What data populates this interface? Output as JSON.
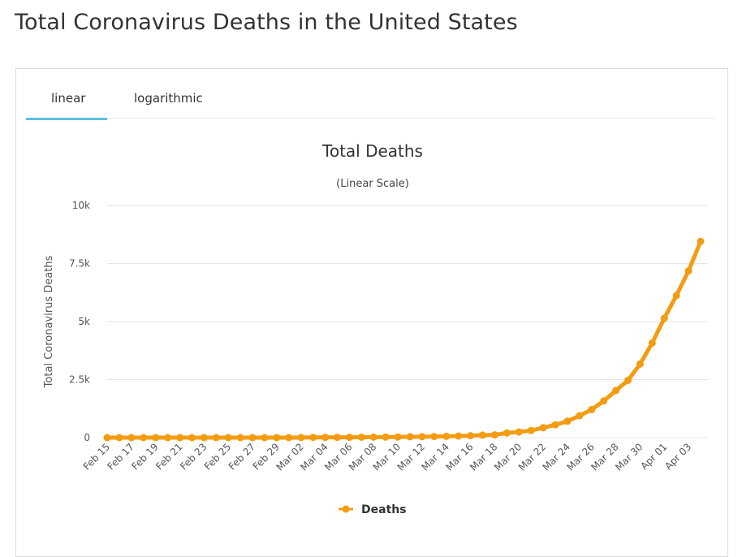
{
  "page": {
    "title": "Total Coronavirus Deaths in the United States"
  },
  "tabs": [
    {
      "label": "linear",
      "active": true
    },
    {
      "label": "logarithmic",
      "active": false
    }
  ],
  "colors": {
    "series": "#f39c12",
    "accent": "#5bc0de",
    "grid": "#e6e6e6"
  },
  "chart_data": {
    "type": "line",
    "title": "Total Deaths",
    "subtitle": "(Linear Scale)",
    "ylabel": "Total Coronavirus Deaths",
    "xlabel": "",
    "ylim": [
      0,
      10000
    ],
    "y_ticks": [
      0,
      2500,
      5000,
      7500,
      10000
    ],
    "y_tick_labels": [
      "0",
      "2.5k",
      "5k",
      "7.5k",
      "10k"
    ],
    "grid": true,
    "legend": "bottom-center",
    "x_tick_labels": [
      "Feb 15",
      "Feb 17",
      "Feb 19",
      "Feb 21",
      "Feb 23",
      "Feb 25",
      "Feb 27",
      "Feb 29",
      "Mar 02",
      "Mar 04",
      "Mar 06",
      "Mar 08",
      "Mar 10",
      "Mar 12",
      "Mar 14",
      "Mar 16",
      "Mar 18",
      "Mar 20",
      "Mar 22",
      "Mar 24",
      "Mar 26",
      "Mar 28",
      "Mar 30",
      "Apr 01",
      "Apr 03"
    ],
    "x": [
      "Feb 15",
      "Feb 16",
      "Feb 17",
      "Feb 18",
      "Feb 19",
      "Feb 20",
      "Feb 21",
      "Feb 22",
      "Feb 23",
      "Feb 24",
      "Feb 25",
      "Feb 26",
      "Feb 27",
      "Feb 28",
      "Feb 29",
      "Mar 01",
      "Mar 02",
      "Mar 03",
      "Mar 04",
      "Mar 05",
      "Mar 06",
      "Mar 07",
      "Mar 08",
      "Mar 09",
      "Mar 10",
      "Mar 11",
      "Mar 12",
      "Mar 13",
      "Mar 14",
      "Mar 15",
      "Mar 16",
      "Mar 17",
      "Mar 18",
      "Mar 19",
      "Mar 20",
      "Mar 21",
      "Mar 22",
      "Mar 23",
      "Mar 24",
      "Mar 25",
      "Mar 26",
      "Mar 27",
      "Mar 28",
      "Mar 29",
      "Mar 30",
      "Mar 31",
      "Apr 01",
      "Apr 02",
      "Apr 03",
      "Apr 04"
    ],
    "series": [
      {
        "name": "Deaths",
        "color": "#f39c12",
        "values": [
          0,
          0,
          0,
          0,
          0,
          0,
          0,
          0,
          0,
          0,
          0,
          0,
          0,
          0,
          1,
          1,
          6,
          9,
          11,
          12,
          15,
          19,
          22,
          26,
          30,
          38,
          41,
          48,
          57,
          68,
          85,
          108,
          118,
          200,
          244,
          307,
          427,
          552,
          706,
          942,
          1209,
          1581,
          2026,
          2467,
          3170,
          4076,
          5140,
          6121,
          7180,
          8452
        ]
      }
    ]
  }
}
